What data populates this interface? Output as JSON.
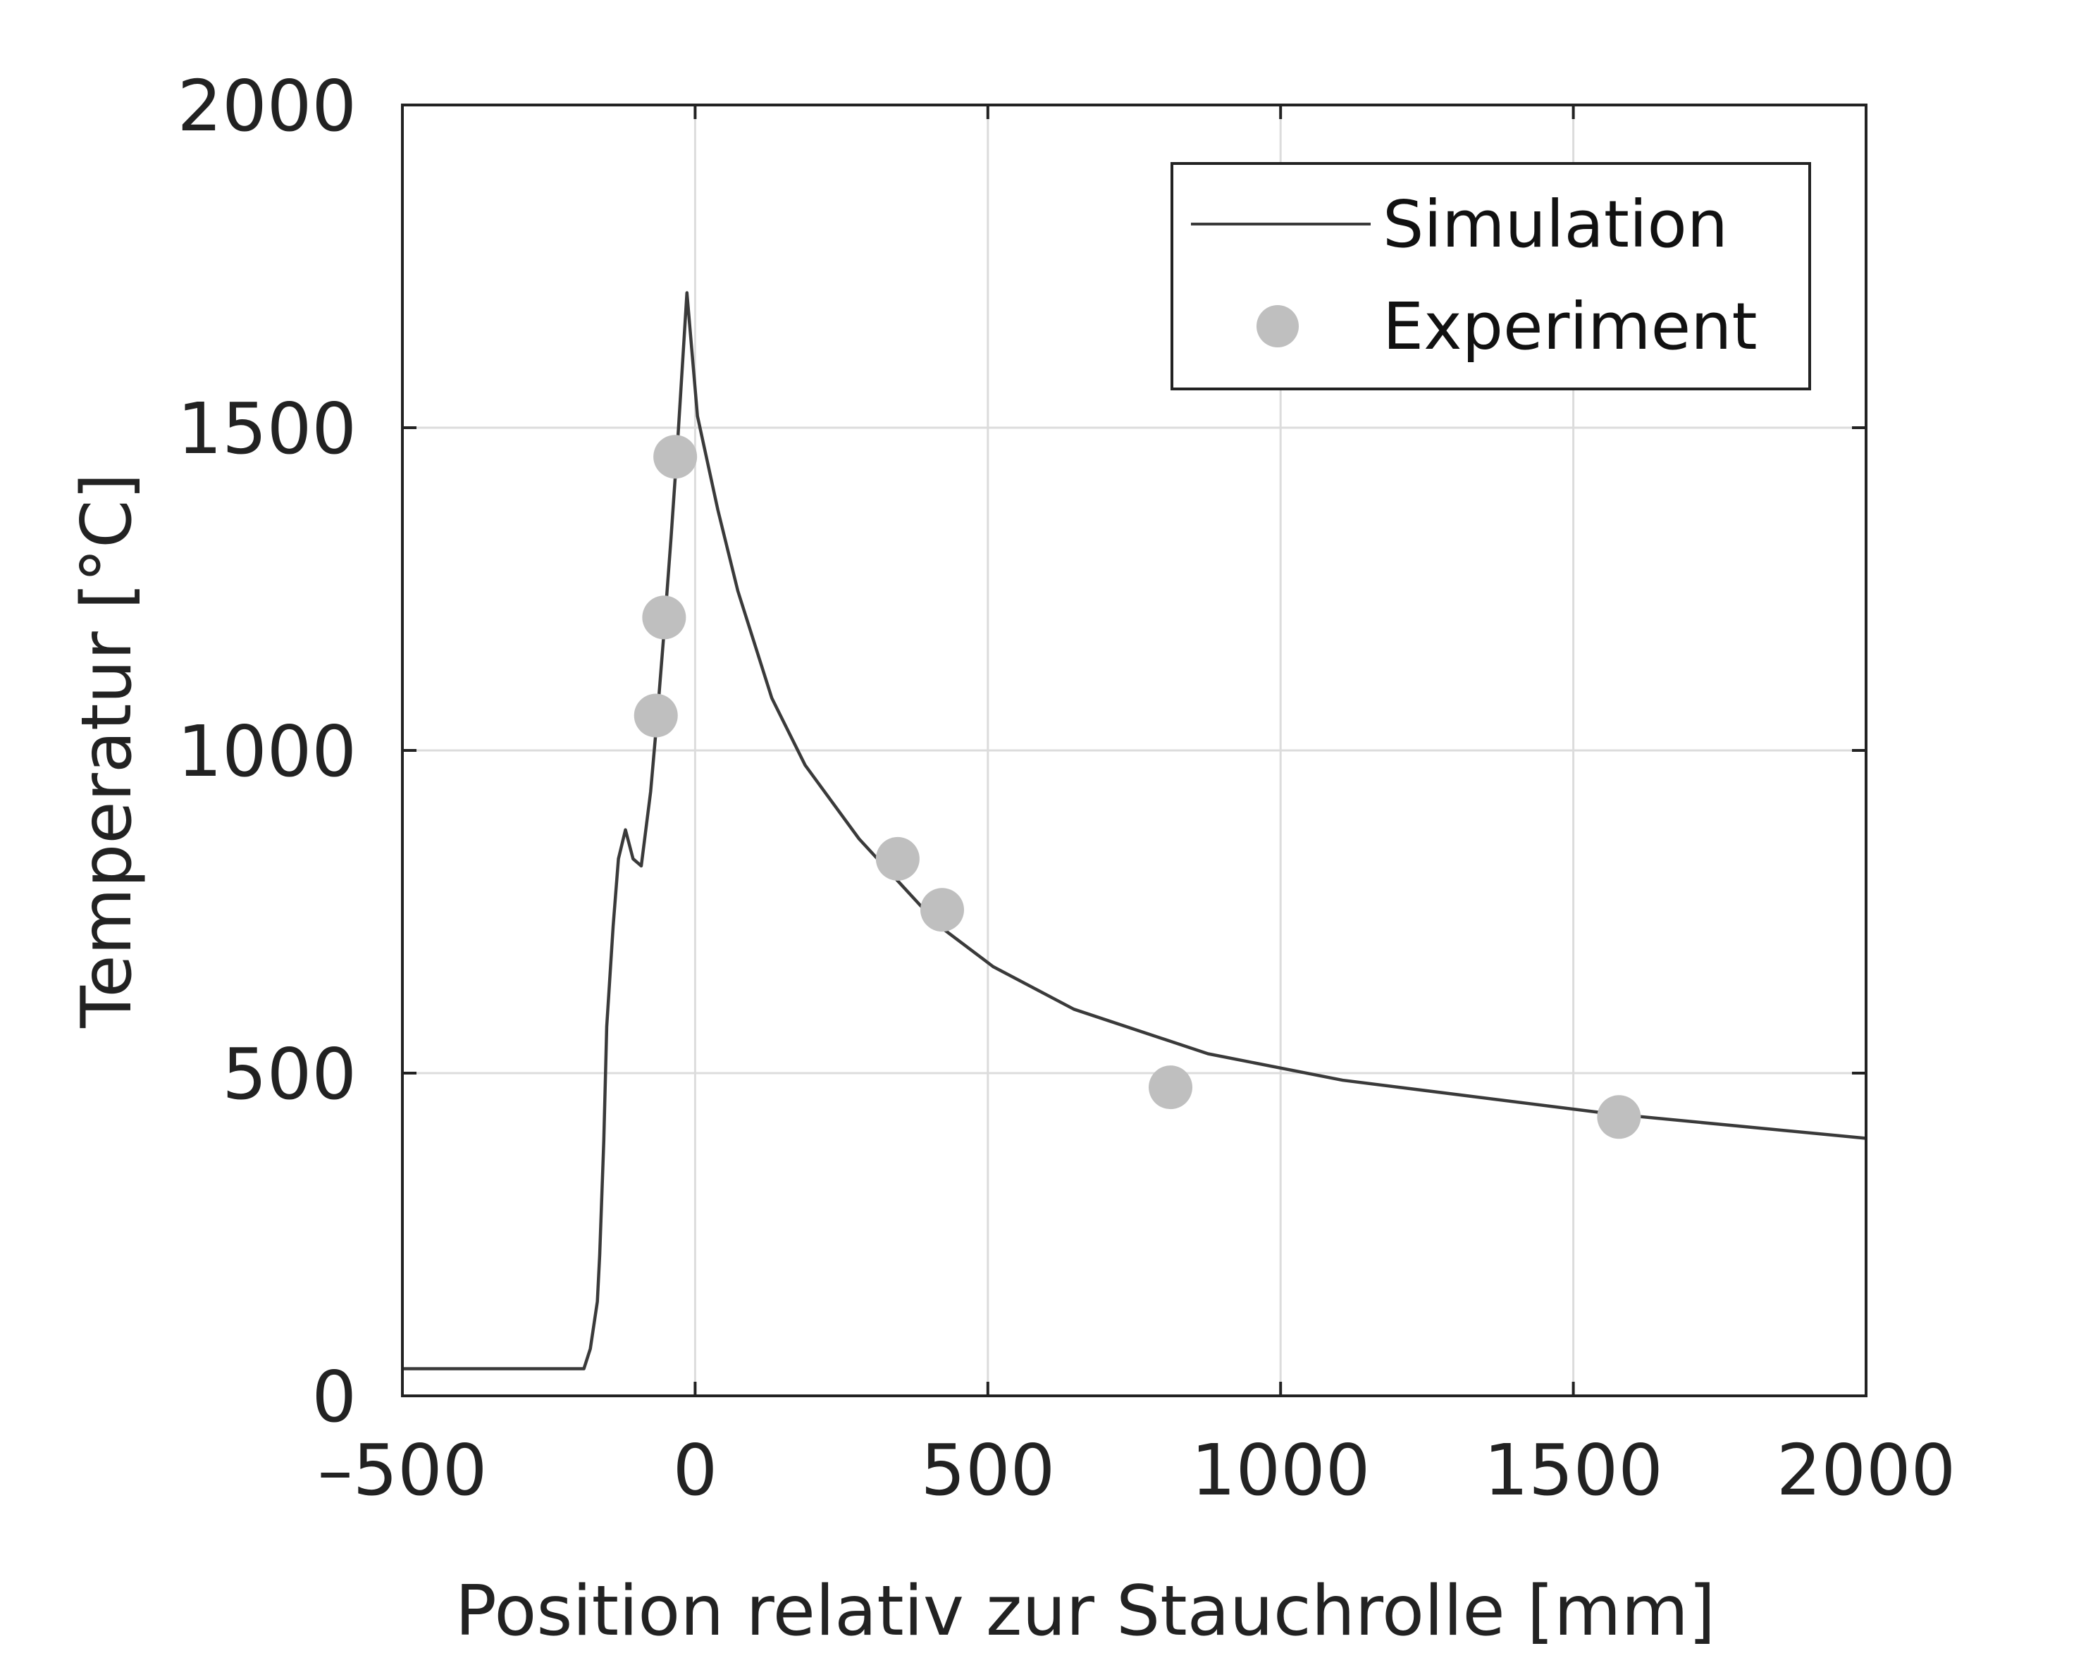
{
  "chart_data": {
    "type": "line",
    "title": "",
    "xlabel": "Position relativ zur Stauchrolle [mm]",
    "ylabel": "Temperatur [°C]",
    "xlim": [
      -500,
      2000
    ],
    "ylim": [
      0,
      2000
    ],
    "xticks": [
      -500,
      0,
      500,
      1000,
      1500,
      2000
    ],
    "xtick_labels": [
      "–500",
      "0",
      "500",
      "1000",
      "1500",
      "2000"
    ],
    "yticks": [
      0,
      500,
      1000,
      1500,
      2000
    ],
    "ytick_labels": [
      "0",
      "500",
      "1000",
      "1500",
      "2000"
    ],
    "grid": true,
    "legend_position": "top-right",
    "series": [
      {
        "name": "Simulation",
        "kind": "line",
        "color": "#3a3a3a",
        "x": [
          -500,
          -190,
          -179,
          -167,
          -163,
          -156,
          -151,
          -140,
          -131,
          -119,
          -106,
          -92,
          -76,
          -64,
          -53,
          -41,
          -30,
          -14,
          4,
          39,
          73,
          131,
          188,
          280,
          417,
          509,
          647,
          876,
          1106,
          1564,
          2000
        ],
        "y": [
          42,
          42,
          73,
          146,
          218,
          395,
          572,
          728,
          832,
          877,
          832,
          821,
          936,
          1060,
          1185,
          1331,
          1476,
          1709,
          1518,
          1372,
          1247,
          1081,
          977,
          863,
          728,
          665,
          599,
          530,
          489,
          437,
          399
        ]
      },
      {
        "name": "Experiment",
        "kind": "scatter",
        "color": "#bfbfbf",
        "x": [
          -34,
          -53,
          -67,
          346,
          422,
          812,
          1578
        ],
        "y": [
          1455,
          1206,
          1054,
          832,
          753,
          478,
          432
        ]
      }
    ]
  }
}
